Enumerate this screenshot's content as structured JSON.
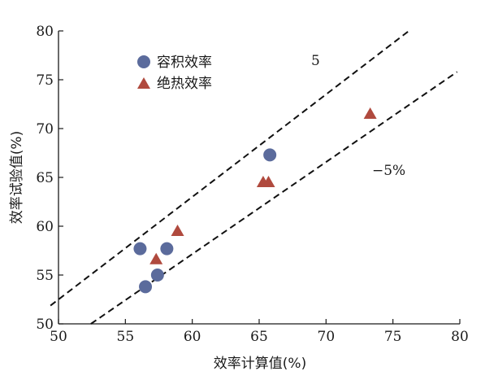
{
  "chart_data": {
    "type": "scatter",
    "xlabel": "效率计算值(%)",
    "ylabel": "效率试验值(%)",
    "xlim": [
      50,
      80
    ],
    "ylim": [
      50,
      80
    ],
    "xticks": [
      50,
      55,
      60,
      65,
      70,
      75,
      80
    ],
    "yticks": [
      50,
      55,
      60,
      65,
      70,
      75,
      80
    ],
    "legend_position": "top-left",
    "series": [
      {
        "name": "容积效率",
        "marker": "circle",
        "color": "#5b6b9c",
        "points": [
          {
            "x": 56.1,
            "y": 57.7
          },
          {
            "x": 58.1,
            "y": 57.7
          },
          {
            "x": 56.5,
            "y": 53.8
          },
          {
            "x": 57.4,
            "y": 55.0
          },
          {
            "x": 65.8,
            "y": 67.3
          }
        ]
      },
      {
        "name": "绝热效率",
        "marker": "triangle",
        "color": "#b04a3e",
        "points": [
          {
            "x": 58.9,
            "y": 59.5
          },
          {
            "x": 57.3,
            "y": 56.6
          },
          {
            "x": 65.3,
            "y": 64.5
          },
          {
            "x": 65.7,
            "y": 64.5
          },
          {
            "x": 73.3,
            "y": 71.5
          }
        ]
      }
    ],
    "reference_lines": [
      {
        "label": "5",
        "offset_pct": 5,
        "style": "dashed"
      },
      {
        "label": "−5%",
        "offset_pct": -5,
        "style": "dashed"
      }
    ]
  }
}
